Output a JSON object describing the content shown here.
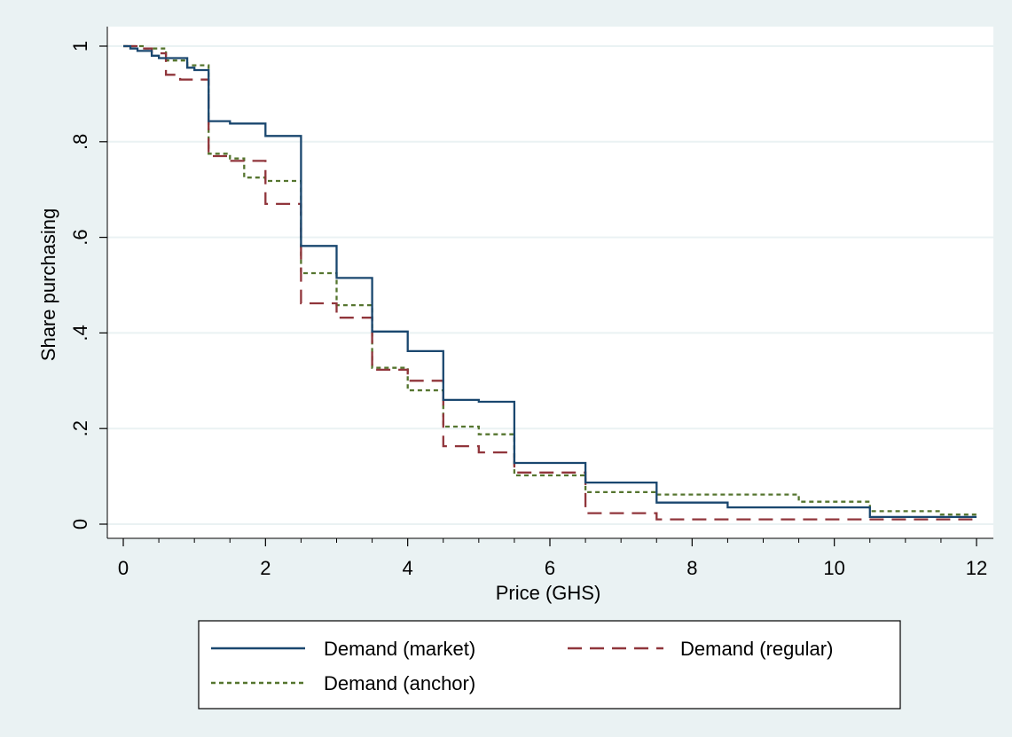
{
  "chart_data": {
    "type": "line",
    "step": true,
    "xlabel": "Price (GHS)",
    "ylabel": "Share purchasing",
    "xlim": [
      0,
      12
    ],
    "ylim": [
      0,
      1
    ],
    "x_ticks": [
      0,
      2,
      4,
      6,
      8,
      10,
      12
    ],
    "x_tick_labels": [
      "0",
      "2",
      "4",
      "6",
      "8",
      "10",
      "12"
    ],
    "y_ticks": [
      0,
      0.2,
      0.4,
      0.6,
      0.8,
      1
    ],
    "y_tick_labels": [
      "0",
      ".2",
      ".4",
      ".6",
      ".8",
      "1"
    ],
    "grid": true,
    "legend_position": "bottom",
    "colors": {
      "market": "#1a476f",
      "regular": "#90353b",
      "anchor": "#55752f",
      "outer_background": "#eaf2f3",
      "plot_background": "#ffffff",
      "gridline": "#eaf2f3"
    },
    "series": [
      {
        "name": "Demand (market)",
        "key": "market",
        "style": "solid",
        "x": [
          0,
          0.1,
          0.2,
          0.3,
          0.4,
          0.5,
          0.6,
          0.9,
          1.0,
          1.2,
          1.5,
          2.0,
          2.5,
          3.0,
          3.5,
          4.0,
          4.5,
          5.0,
          5.5,
          6.5,
          7.5,
          8.5,
          10.5,
          12.0
        ],
        "y": [
          1.0,
          0.995,
          0.99,
          0.99,
          0.98,
          0.975,
          0.975,
          0.955,
          0.95,
          0.843,
          0.838,
          0.812,
          0.582,
          0.515,
          0.403,
          0.362,
          0.26,
          0.256,
          0.128,
          0.087,
          0.045,
          0.035,
          0.015,
          0.015
        ]
      },
      {
        "name": "Demand (regular)",
        "key": "regular",
        "style": "dash",
        "x": [
          0,
          0.2,
          0.4,
          0.6,
          0.8,
          1.2,
          1.5,
          2.0,
          2.5,
          3.0,
          3.5,
          4.0,
          4.5,
          5.0,
          5.5,
          6.5,
          7.5,
          12.0
        ],
        "y": [
          1.0,
          0.995,
          0.985,
          0.94,
          0.93,
          0.77,
          0.76,
          0.67,
          0.462,
          0.432,
          0.323,
          0.3,
          0.163,
          0.15,
          0.108,
          0.023,
          0.01,
          0.01
        ]
      },
      {
        "name": "Demand (anchor)",
        "key": "anchor",
        "style": "dot",
        "x": [
          0,
          0.3,
          0.6,
          0.9,
          1.2,
          1.5,
          1.7,
          2.0,
          2.5,
          3.0,
          3.5,
          4.0,
          4.5,
          5.0,
          5.5,
          6.5,
          7.5,
          9.5,
          10.5,
          11.5,
          12.0
        ],
        "y": [
          1.0,
          0.995,
          0.97,
          0.96,
          0.775,
          0.765,
          0.725,
          0.718,
          0.525,
          0.458,
          0.327,
          0.28,
          0.204,
          0.188,
          0.102,
          0.067,
          0.062,
          0.047,
          0.027,
          0.02,
          0.02
        ]
      }
    ]
  }
}
